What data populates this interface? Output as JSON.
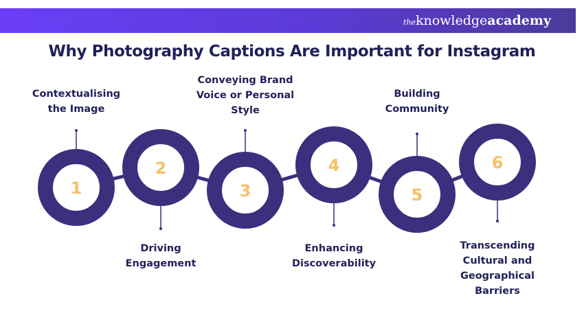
{
  "brand": {
    "prefix": "the",
    "mid": "knowledge",
    "suffix": "academy"
  },
  "title": "Why Photography Captions Are Important for Instagram",
  "colors": {
    "ring": "#3b2f7e",
    "number": "#f5c06a",
    "title": "#22205a",
    "banner": "#5b3bd6"
  },
  "steps": [
    {
      "number": "1",
      "lines": [
        "Contextualising",
        "the Image"
      ]
    },
    {
      "number": "2",
      "lines": [
        "Driving",
        "Engagement"
      ]
    },
    {
      "number": "3",
      "lines": [
        "Conveying Brand",
        "Voice or Personal",
        "Style"
      ]
    },
    {
      "number": "4",
      "lines": [
        "Enhancing",
        "Discoverability"
      ]
    },
    {
      "number": "5",
      "lines": [
        "Building",
        "Community"
      ]
    },
    {
      "number": "6",
      "lines": [
        "Transcending",
        "Cultural and",
        "Geographical",
        "Barriers"
      ]
    }
  ]
}
